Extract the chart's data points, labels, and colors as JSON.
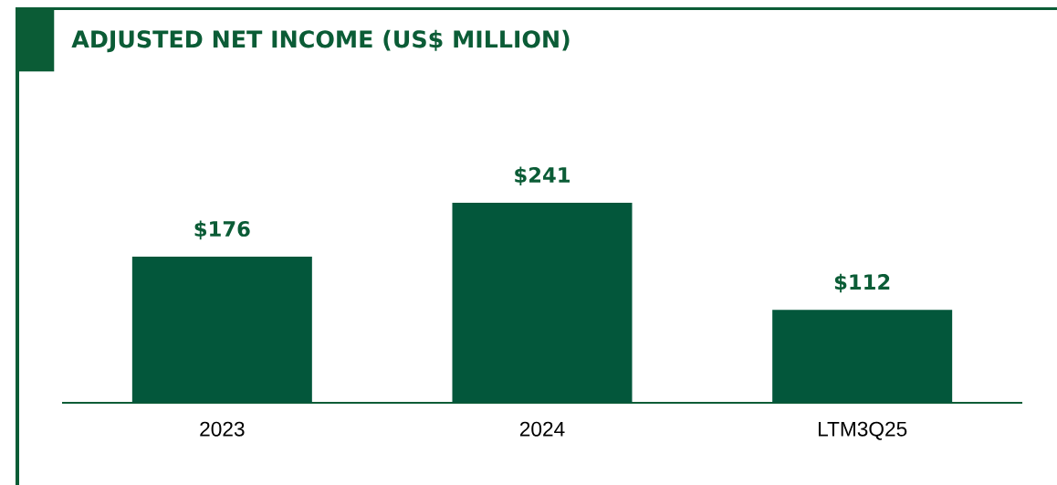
{
  "chart_data": {
    "type": "bar",
    "title": "ADJUSTED NET INCOME (US$ MILLION)",
    "categories": [
      "2023",
      "2024",
      "LTM3Q25"
    ],
    "values": [
      176,
      241,
      112
    ],
    "value_labels": [
      "$176",
      "$241",
      "$112"
    ],
    "color": "#03573b"
  }
}
